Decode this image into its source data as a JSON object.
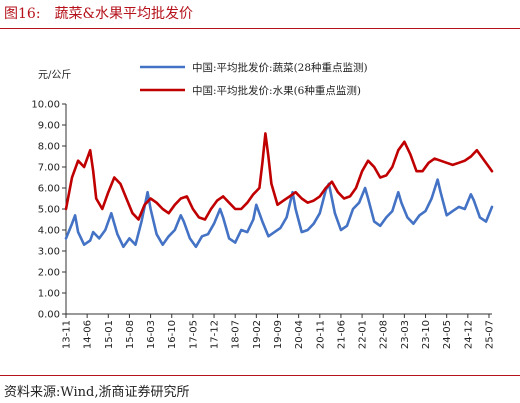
{
  "figure": {
    "label": "图16:",
    "title": "蔬菜&水果平均批发价"
  },
  "source": "资料来源:Wind,浙商证券研究所",
  "colors": {
    "vegetables": "#4472c4",
    "fruits": "#c00000",
    "accent": "#b5121b"
  },
  "chart_data": {
    "type": "line",
    "ylabel": "元/公斤",
    "ylim": [
      0,
      10
    ],
    "yticks": [
      "0.00",
      "1.00",
      "2.00",
      "3.00",
      "4.00",
      "5.00",
      "6.00",
      "7.00",
      "8.00",
      "9.00",
      "10.00"
    ],
    "xticks": [
      "13-11",
      "14-06",
      "15-01",
      "15-08",
      "16-03",
      "16-10",
      "17-05",
      "17-12",
      "18-07",
      "19-02",
      "19-09",
      "20-04",
      "20-11",
      "21-06",
      "22-01",
      "22-08",
      "23-03",
      "23-10",
      "24-05",
      "24-12",
      "25-07"
    ],
    "x_start": "2013-11",
    "x_end": "2025-08",
    "legend_position": "top",
    "grid": false,
    "series": [
      {
        "name": "中国:平均批发价:蔬菜(28种重点监测)",
        "color": "#4472c4",
        "points": [
          [
            "2013-11",
            3.6
          ],
          [
            "2014-01",
            4.3
          ],
          [
            "2014-02",
            4.7
          ],
          [
            "2014-03",
            3.9
          ],
          [
            "2014-05",
            3.3
          ],
          [
            "2014-07",
            3.5
          ],
          [
            "2014-08",
            3.9
          ],
          [
            "2014-10",
            3.6
          ],
          [
            "2014-12",
            4.0
          ],
          [
            "2015-02",
            4.8
          ],
          [
            "2015-04",
            3.8
          ],
          [
            "2015-06",
            3.2
          ],
          [
            "2015-08",
            3.6
          ],
          [
            "2015-10",
            3.3
          ],
          [
            "2015-12",
            4.4
          ],
          [
            "2016-02",
            5.8
          ],
          [
            "2016-03",
            5.0
          ],
          [
            "2016-05",
            3.8
          ],
          [
            "2016-07",
            3.3
          ],
          [
            "2016-09",
            3.7
          ],
          [
            "2016-11",
            4.0
          ],
          [
            "2017-01",
            4.7
          ],
          [
            "2017-02",
            4.4
          ],
          [
            "2017-04",
            3.6
          ],
          [
            "2017-06",
            3.2
          ],
          [
            "2017-08",
            3.7
          ],
          [
            "2017-10",
            3.8
          ],
          [
            "2017-12",
            4.3
          ],
          [
            "2018-02",
            5.0
          ],
          [
            "2018-03",
            4.6
          ],
          [
            "2018-05",
            3.6
          ],
          [
            "2018-07",
            3.4
          ],
          [
            "2018-09",
            4.0
          ],
          [
            "2018-11",
            3.9
          ],
          [
            "2019-01",
            4.5
          ],
          [
            "2019-02",
            5.2
          ],
          [
            "2019-04",
            4.4
          ],
          [
            "2019-06",
            3.7
          ],
          [
            "2019-08",
            3.9
          ],
          [
            "2019-10",
            4.1
          ],
          [
            "2019-12",
            4.6
          ],
          [
            "2020-02",
            5.8
          ],
          [
            "2020-03",
            5.0
          ],
          [
            "2020-05",
            3.9
          ],
          [
            "2020-07",
            4.0
          ],
          [
            "2020-09",
            4.3
          ],
          [
            "2020-11",
            4.8
          ],
          [
            "2021-01",
            5.9
          ],
          [
            "2021-02",
            6.2
          ],
          [
            "2021-04",
            4.8
          ],
          [
            "2021-06",
            4.0
          ],
          [
            "2021-08",
            4.2
          ],
          [
            "2021-10",
            5.0
          ],
          [
            "2021-12",
            5.3
          ],
          [
            "2022-02",
            6.0
          ],
          [
            "2022-03",
            5.5
          ],
          [
            "2022-05",
            4.4
          ],
          [
            "2022-07",
            4.2
          ],
          [
            "2022-09",
            4.6
          ],
          [
            "2022-11",
            4.9
          ],
          [
            "2023-01",
            5.8
          ],
          [
            "2023-02",
            5.3
          ],
          [
            "2023-04",
            4.6
          ],
          [
            "2023-06",
            4.3
          ],
          [
            "2023-08",
            4.7
          ],
          [
            "2023-10",
            4.9
          ],
          [
            "2023-12",
            5.5
          ],
          [
            "2024-02",
            6.4
          ],
          [
            "2024-03",
            5.8
          ],
          [
            "2024-05",
            4.7
          ],
          [
            "2024-07",
            4.9
          ],
          [
            "2024-09",
            5.1
          ],
          [
            "2024-11",
            5.0
          ],
          [
            "2025-01",
            5.7
          ],
          [
            "2025-02",
            5.4
          ],
          [
            "2025-04",
            4.6
          ],
          [
            "2025-06",
            4.4
          ],
          [
            "2025-08",
            5.1
          ]
        ]
      },
      {
        "name": "中国:平均批发价:水果(6种重点监测)",
        "color": "#c00000",
        "points": [
          [
            "2013-11",
            5.0
          ],
          [
            "2014-01",
            6.5
          ],
          [
            "2014-03",
            7.3
          ],
          [
            "2014-05",
            7.0
          ],
          [
            "2014-07",
            7.8
          ],
          [
            "2014-08",
            6.8
          ],
          [
            "2014-09",
            5.5
          ],
          [
            "2014-11",
            5.0
          ],
          [
            "2015-01",
            5.8
          ],
          [
            "2015-03",
            6.5
          ],
          [
            "2015-05",
            6.2
          ],
          [
            "2015-07",
            5.5
          ],
          [
            "2015-09",
            4.8
          ],
          [
            "2015-11",
            4.5
          ],
          [
            "2016-01",
            5.2
          ],
          [
            "2016-03",
            5.5
          ],
          [
            "2016-05",
            5.3
          ],
          [
            "2016-07",
            5.0
          ],
          [
            "2016-09",
            4.8
          ],
          [
            "2016-11",
            5.2
          ],
          [
            "2017-01",
            5.5
          ],
          [
            "2017-03",
            5.6
          ],
          [
            "2017-05",
            5.0
          ],
          [
            "2017-07",
            4.6
          ],
          [
            "2017-09",
            4.5
          ],
          [
            "2017-11",
            5.0
          ],
          [
            "2018-01",
            5.4
          ],
          [
            "2018-03",
            5.6
          ],
          [
            "2018-05",
            5.3
          ],
          [
            "2018-07",
            5.0
          ],
          [
            "2018-09",
            5.0
          ],
          [
            "2018-11",
            5.3
          ],
          [
            "2019-01",
            5.7
          ],
          [
            "2019-03",
            6.0
          ],
          [
            "2019-04",
            7.2
          ],
          [
            "2019-05",
            8.6
          ],
          [
            "2019-06",
            7.5
          ],
          [
            "2019-07",
            6.2
          ],
          [
            "2019-09",
            5.2
          ],
          [
            "2019-11",
            5.4
          ],
          [
            "2020-01",
            5.6
          ],
          [
            "2020-03",
            5.8
          ],
          [
            "2020-05",
            5.5
          ],
          [
            "2020-07",
            5.3
          ],
          [
            "2020-09",
            5.4
          ],
          [
            "2020-11",
            5.6
          ],
          [
            "2021-01",
            6.0
          ],
          [
            "2021-03",
            6.3
          ],
          [
            "2021-05",
            5.8
          ],
          [
            "2021-07",
            5.5
          ],
          [
            "2021-09",
            5.6
          ],
          [
            "2021-11",
            6.0
          ],
          [
            "2022-01",
            6.8
          ],
          [
            "2022-03",
            7.3
          ],
          [
            "2022-05",
            7.0
          ],
          [
            "2022-07",
            6.5
          ],
          [
            "2022-09",
            6.6
          ],
          [
            "2022-11",
            7.0
          ],
          [
            "2023-01",
            7.8
          ],
          [
            "2023-03",
            8.2
          ],
          [
            "2023-05",
            7.6
          ],
          [
            "2023-07",
            6.8
          ],
          [
            "2023-09",
            6.8
          ],
          [
            "2023-11",
            7.2
          ],
          [
            "2024-01",
            7.4
          ],
          [
            "2024-03",
            7.3
          ],
          [
            "2024-05",
            7.2
          ],
          [
            "2024-07",
            7.1
          ],
          [
            "2024-09",
            7.2
          ],
          [
            "2024-11",
            7.3
          ],
          [
            "2025-01",
            7.5
          ],
          [
            "2025-03",
            7.8
          ],
          [
            "2025-05",
            7.4
          ],
          [
            "2025-07",
            7.0
          ],
          [
            "2025-08",
            6.8
          ]
        ]
      }
    ]
  }
}
